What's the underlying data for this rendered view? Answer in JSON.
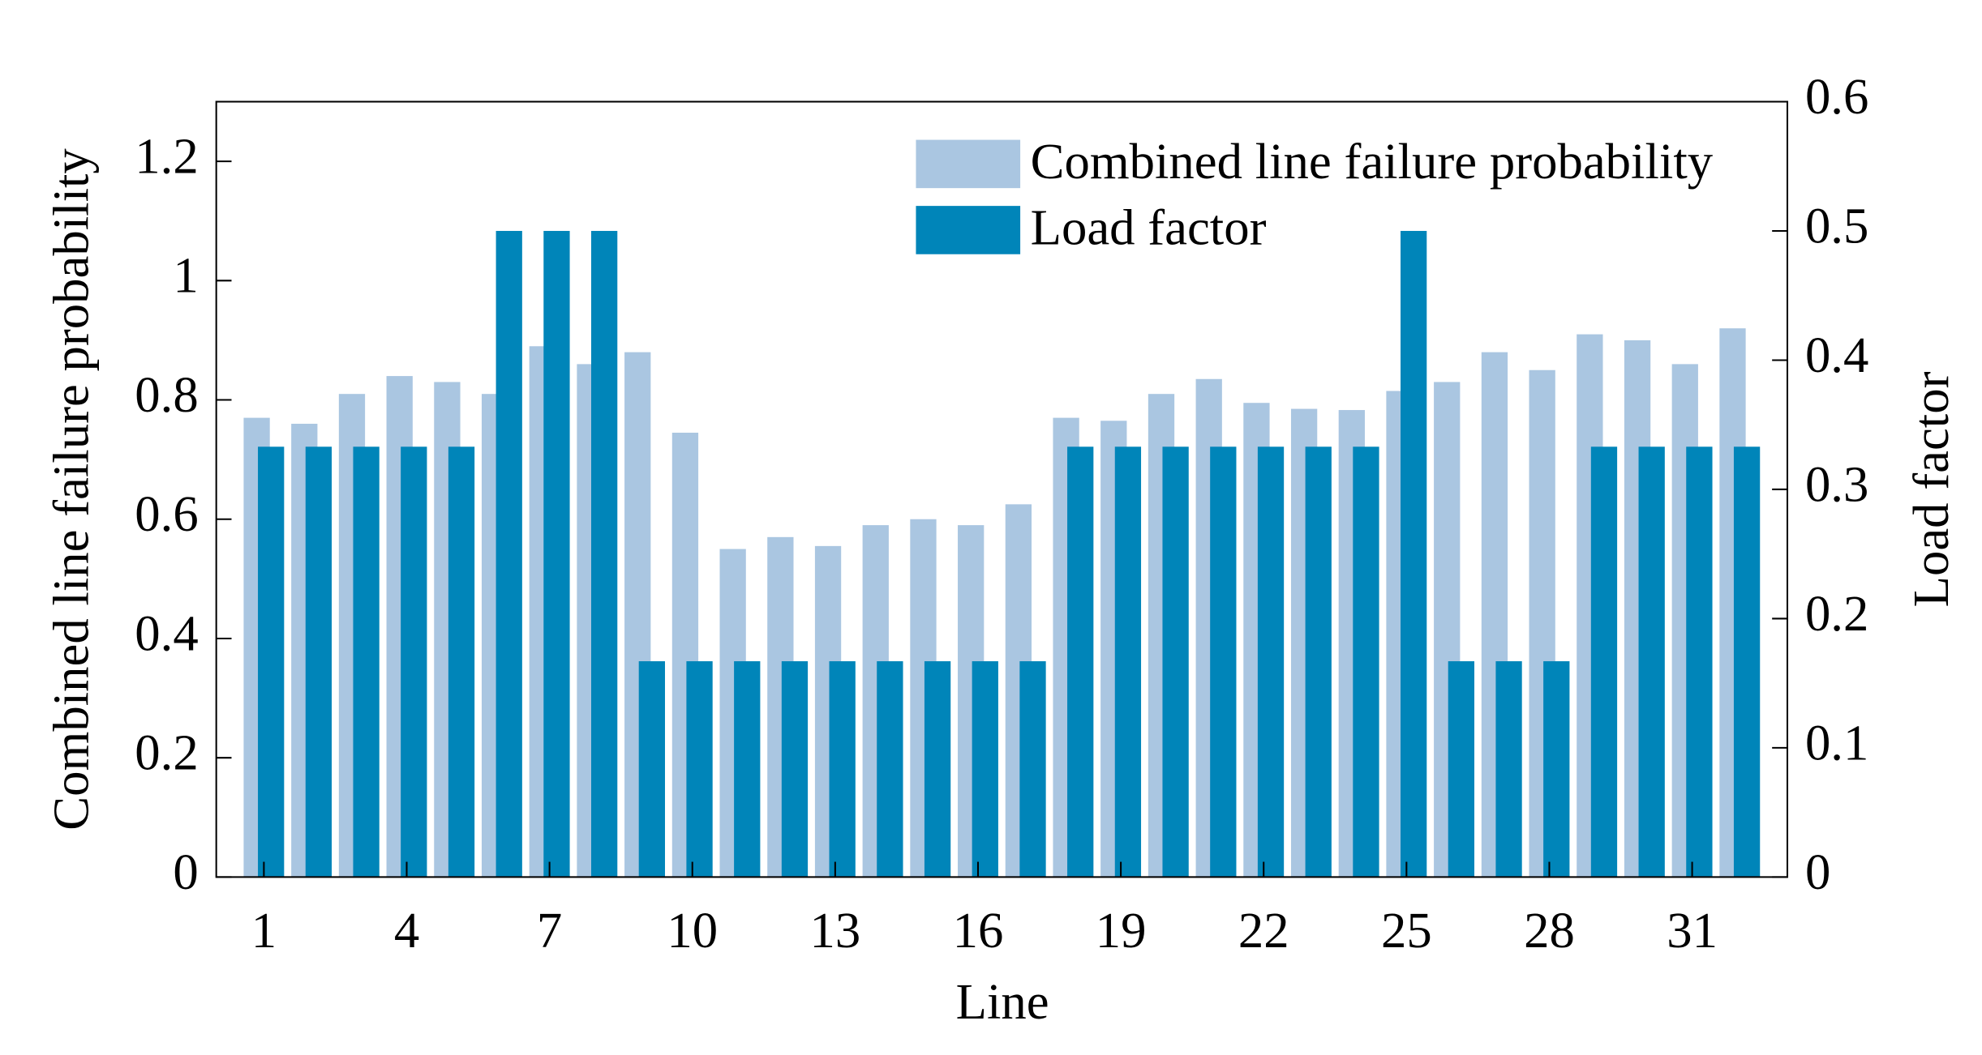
{
  "chart_data": {
    "type": "bar",
    "x_label": "Line",
    "y_label": "Combined line failure probability",
    "y2_label": "Load factor",
    "x": [
      1,
      2,
      3,
      4,
      5,
      6,
      7,
      8,
      9,
      10,
      11,
      12,
      13,
      14,
      15,
      16,
      17,
      18,
      19,
      20,
      21,
      22,
      23,
      24,
      25,
      26,
      27,
      28,
      29,
      30,
      31,
      32
    ],
    "xlim": [
      0,
      33
    ],
    "xticks": [
      1,
      4,
      7,
      10,
      13,
      16,
      19,
      22,
      25,
      28,
      31
    ],
    "ylim": [
      0,
      1.3
    ],
    "yticks": [
      0,
      0.2,
      0.4,
      0.6,
      0.8,
      1,
      1.2
    ],
    "y2lim": [
      0,
      0.6
    ],
    "y2ticks": [
      0,
      0.1,
      0.2,
      0.3,
      0.4,
      0.5,
      0.6
    ],
    "legend": "upper right",
    "series": [
      {
        "name": "Combined line failure probability",
        "color": "#aac6e1",
        "values": [
          0.77,
          0.76,
          0.81,
          0.84,
          0.83,
          0.81,
          0.89,
          0.86,
          0.88,
          0.745,
          0.55,
          0.57,
          0.555,
          0.59,
          0.6,
          0.59,
          0.625,
          0.77,
          0.765,
          0.81,
          0.835,
          0.795,
          0.785,
          0.783,
          0.815,
          0.83,
          0.88,
          0.85,
          0.91,
          0.9,
          0.86,
          0.92
        ]
      },
      {
        "name": "Load factor",
        "color": "#0085b9",
        "axis": "y2",
        "values": [
          0.333,
          0.333,
          0.333,
          0.333,
          0.333,
          0.5,
          0.5,
          0.5,
          0.167,
          0.167,
          0.167,
          0.167,
          0.167,
          0.167,
          0.167,
          0.167,
          0.167,
          0.333,
          0.333,
          0.333,
          0.333,
          0.333,
          0.333,
          0.333,
          0.5,
          0.167,
          0.167,
          0.167,
          0.333,
          0.333,
          0.333,
          0.333
        ]
      }
    ]
  }
}
